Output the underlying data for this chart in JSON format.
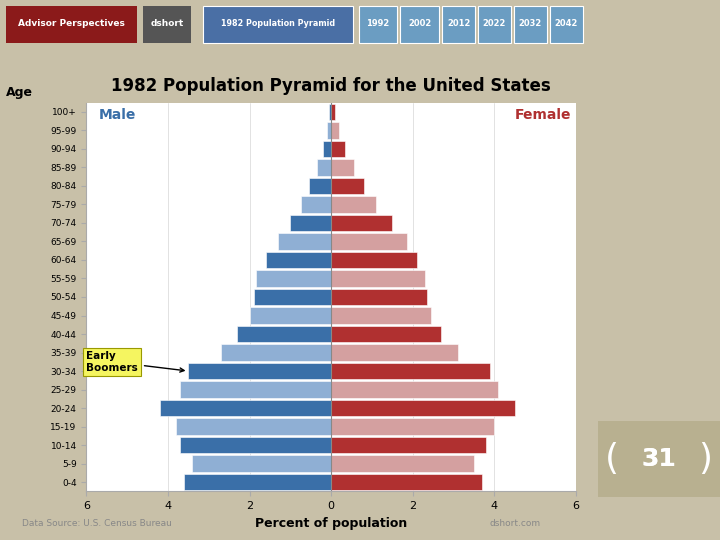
{
  "title": "1982 Population Pyramid for the United States",
  "age_groups": [
    "100+",
    "95-99",
    "90-94",
    "85-89",
    "80-84",
    "75-79",
    "70-74",
    "65-69",
    "60-64",
    "55-59",
    "50-54",
    "45-49",
    "40-44",
    "35-39",
    "30-34",
    "25-29",
    "20-24",
    "15-19",
    "10-14",
    "5-9",
    "0-4"
  ],
  "male": [
    0.05,
    0.1,
    0.2,
    0.35,
    0.55,
    0.75,
    1.0,
    1.3,
    1.6,
    1.85,
    1.9,
    2.0,
    2.3,
    2.7,
    3.5,
    3.7,
    4.2,
    3.8,
    3.7,
    3.4,
    3.6
  ],
  "female": [
    0.1,
    0.2,
    0.35,
    0.55,
    0.8,
    1.1,
    1.5,
    1.85,
    2.1,
    2.3,
    2.35,
    2.45,
    2.7,
    3.1,
    3.9,
    4.1,
    4.5,
    4.0,
    3.8,
    3.5,
    3.7
  ],
  "male_color_light": "#8fafd4",
  "male_color_dark": "#3a6fa8",
  "female_color_light": "#d4a0a0",
  "female_color_dark": "#b03030",
  "xlabel": "Percent of population",
  "ylabel": "Age",
  "xlim_left": -6,
  "xlim_right": 6,
  "xtick_labels": [
    "6",
    "4",
    "2",
    "0",
    "2",
    "4",
    "6"
  ],
  "chart_bg": "#ffffff",
  "outer_bg": "#c8c0a8",
  "right_panel_bg": "#6b6448",
  "header_bg": "#d0d0d0",
  "advisor_label": "Advisor Perspectives",
  "advisor_color": "#8b1a1a",
  "dshort_label": "dshort",
  "dshort_color": "#555555",
  "header_labels": [
    "1982 Population Pyramid",
    "1992",
    "2002",
    "2012",
    "2022",
    "2032",
    "2042"
  ],
  "header_active_color": "#4a6fa5",
  "header_inactive_color": "#6b9dc2",
  "note_text": "Data Source: U.S. Census Bureau",
  "note_right": "dshort.com",
  "boomers_label": "Early\nBoomers",
  "slide_number": "31",
  "slide_bg": "#b8b090",
  "slide_dark_bg": "#6b6448"
}
